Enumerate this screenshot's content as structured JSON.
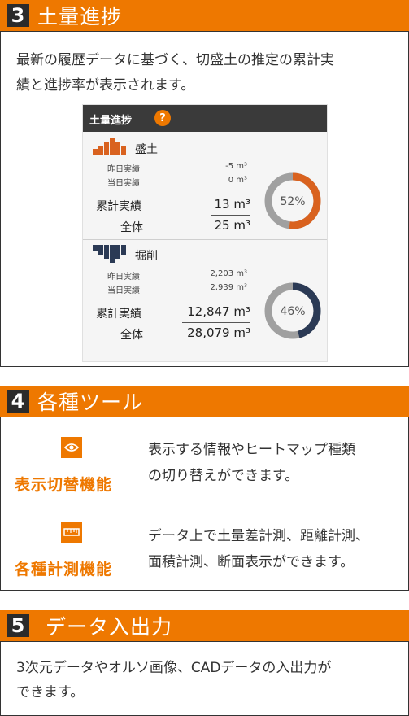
{
  "sections": {
    "progress": {
      "number": "3",
      "title": "土量進捗",
      "description_line1": "最新の履歴データに基づく、切盛土の推定の累計実",
      "description_line2": "績と進捗率が表示されます。"
    },
    "tools": {
      "number": "4",
      "title": "各種ツール"
    },
    "io": {
      "number": "5",
      "title": "データ入出力",
      "description_line1": "3次元データやオルソ画像、CADデータの入出力が",
      "description_line2": "できます。"
    }
  },
  "panel": {
    "title": "土量進捗",
    "help_icon_text": "?",
    "fill": {
      "label": "盛土",
      "yesterday_label": "昨日実績",
      "yesterday_value": "-5 m³",
      "today_label": "当日実績",
      "today_value": "0 m³",
      "cumulative_label": "累計実績",
      "cumulative_value": "13 m³",
      "total_label": "全体",
      "total_value": "25 m³",
      "percent_text": "52%",
      "percent": 0.52,
      "color": "#d9621f"
    },
    "cut": {
      "label": "掘削",
      "yesterday_label": "昨日実績",
      "yesterday_value": "2,203 m³",
      "today_label": "当日実績",
      "today_value": "2,939 m³",
      "cumulative_label": "累計実績",
      "cumulative_value": "12,847 m³",
      "total_label": "全体",
      "total_value": "28,079 m³",
      "percent_text": "46%",
      "percent": 0.46,
      "color": "#2b3a55"
    }
  },
  "tools_list": [
    {
      "icon": "eye-icon",
      "name": "表示切替機能",
      "desc_line1": "表示する情報やヒートマップ種類",
      "desc_line2": "の切り替えができます。"
    },
    {
      "icon": "ruler-icon",
      "name": "各種計測機能",
      "desc_line1": "データ上で土量差計測、距離計測、",
      "desc_line2": "面積計測、断面表示ができます。"
    }
  ],
  "colors": {
    "accent": "#ee7800",
    "dark": "#2b2b2b",
    "ring_track": "#a0a0a0"
  }
}
